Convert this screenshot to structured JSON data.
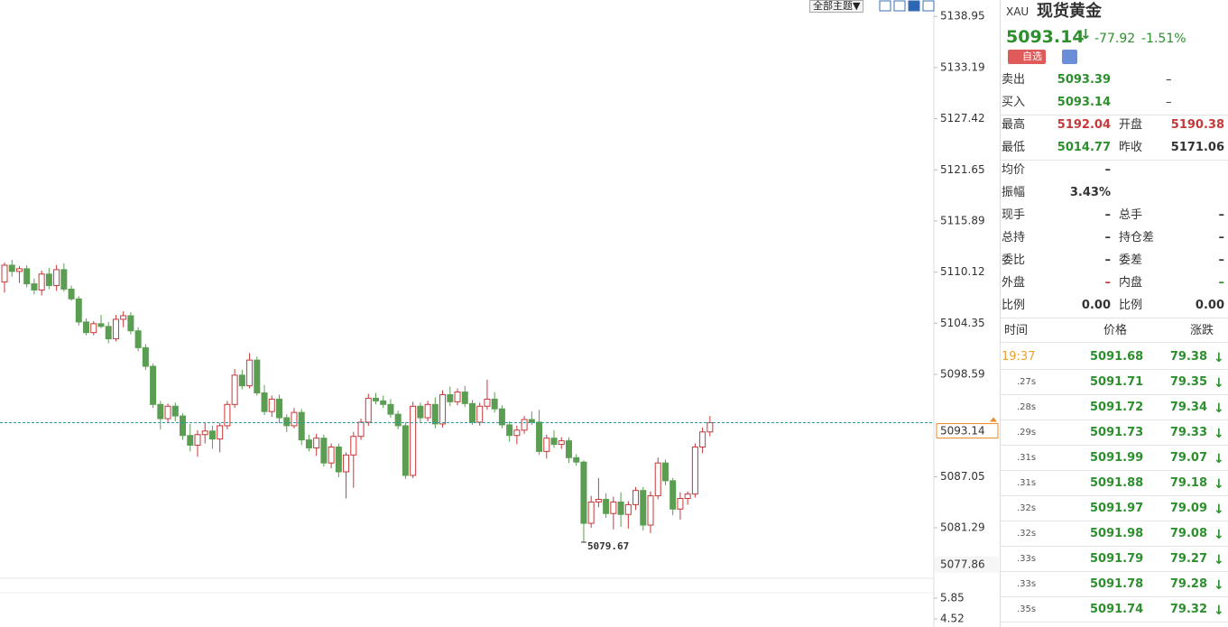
{
  "toolbar": {
    "theme_button": "全部主题▼"
  },
  "chart_data": {
    "type": "candlestick",
    "candles": [
      [
        5109.0,
        5111.2,
        5107.8,
        5110.9
      ],
      [
        5110.9,
        5111.5,
        5109.6,
        5110.2
      ],
      [
        5110.2,
        5110.8,
        5108.9,
        5110.5
      ],
      [
        5110.5,
        5110.9,
        5108.4,
        5108.8
      ],
      [
        5108.8,
        5109.4,
        5107.6,
        5108.1
      ],
      [
        5108.1,
        5110.3,
        5107.5,
        5109.9
      ],
      [
        5109.9,
        5110.6,
        5108.2,
        5108.6
      ],
      [
        5108.6,
        5110.9,
        5108.0,
        5110.4
      ],
      [
        5110.4,
        5111.1,
        5107.9,
        5108.2
      ],
      [
        5108.2,
        5108.6,
        5106.9,
        5107.1
      ],
      [
        5107.1,
        5107.4,
        5104.1,
        5104.5
      ],
      [
        5104.5,
        5104.9,
        5103.0,
        5103.3
      ],
      [
        5103.3,
        5104.6,
        5103.0,
        5104.3
      ],
      [
        5104.3,
        5105.3,
        5103.8,
        5104.0
      ],
      [
        5104.0,
        5104.5,
        5102.1,
        5102.6
      ],
      [
        5102.6,
        5105.3,
        5102.3,
        5104.8
      ],
      [
        5104.8,
        5105.7,
        5103.9,
        5105.2
      ],
      [
        5105.2,
        5105.6,
        5103.1,
        5103.5
      ],
      [
        5103.5,
        5103.9,
        5101.2,
        5101.6
      ],
      [
        5101.6,
        5102.0,
        5099.1,
        5099.5
      ],
      [
        5099.5,
        5099.8,
        5094.8,
        5095.2
      ],
      [
        5095.2,
        5095.6,
        5092.4,
        5093.6
      ],
      [
        5093.6,
        5095.3,
        5093.2,
        5095.0
      ],
      [
        5095.0,
        5095.4,
        5093.3,
        5093.9
      ],
      [
        5093.9,
        5094.2,
        5091.2,
        5091.7
      ],
      [
        5091.7,
        5093.0,
        5089.9,
        5090.6
      ],
      [
        5090.6,
        5092.3,
        5089.3,
        5091.8
      ],
      [
        5091.8,
        5093.2,
        5090.8,
        5092.2
      ],
      [
        5092.2,
        5092.8,
        5090.2,
        5091.3
      ],
      [
        5091.3,
        5093.1,
        5089.8,
        5092.8
      ],
      [
        5092.8,
        5095.6,
        5092.4,
        5095.2
      ],
      [
        5095.2,
        5099.2,
        5094.8,
        5098.5
      ],
      [
        5098.5,
        5099.1,
        5096.9,
        5097.3
      ],
      [
        5097.3,
        5101.0,
        5097.0,
        5100.2
      ],
      [
        5100.2,
        5100.6,
        5096.2,
        5096.5
      ],
      [
        5096.5,
        5097.4,
        5094.0,
        5094.4
      ],
      [
        5094.4,
        5096.2,
        5093.8,
        5095.8
      ],
      [
        5095.8,
        5096.3,
        5093.1,
        5093.7
      ],
      [
        5093.7,
        5094.1,
        5092.1,
        5092.8
      ],
      [
        5092.8,
        5094.8,
        5092.5,
        5094.3
      ],
      [
        5094.3,
        5094.7,
        5090.6,
        5091.2
      ],
      [
        5091.2,
        5091.8,
        5089.9,
        5090.3
      ],
      [
        5090.3,
        5091.9,
        5089.4,
        5091.4
      ],
      [
        5091.4,
        5091.8,
        5088.2,
        5088.6
      ],
      [
        5088.6,
        5090.8,
        5088.0,
        5090.4
      ],
      [
        5090.4,
        5090.8,
        5087.0,
        5087.6
      ],
      [
        5087.6,
        5089.8,
        5084.6,
        5089.5
      ],
      [
        5089.5,
        5092.1,
        5085.8,
        5091.6
      ],
      [
        5091.6,
        5093.6,
        5091.2,
        5093.2
      ],
      [
        5093.2,
        5096.4,
        5092.8,
        5095.9
      ],
      [
        5095.9,
        5096.5,
        5095.2,
        5095.6
      ],
      [
        5095.6,
        5096.2,
        5094.8,
        5095.2
      ],
      [
        5095.2,
        5095.8,
        5093.7,
        5094.1
      ],
      [
        5094.1,
        5094.5,
        5092.4,
        5092.8
      ],
      [
        5092.8,
        5093.2,
        5086.8,
        5087.2
      ],
      [
        5087.2,
        5095.5,
        5086.9,
        5095.0
      ],
      [
        5095.0,
        5095.4,
        5093.2,
        5093.7
      ],
      [
        5093.7,
        5095.6,
        5093.3,
        5095.2
      ],
      [
        5095.2,
        5096.0,
        5092.5,
        5093.0
      ],
      [
        5093.0,
        5096.8,
        5092.6,
        5096.3
      ],
      [
        5096.3,
        5097.2,
        5095.0,
        5095.5
      ],
      [
        5095.5,
        5097.0,
        5095.1,
        5096.6
      ],
      [
        5096.6,
        5097.3,
        5094.9,
        5095.3
      ],
      [
        5095.3,
        5095.7,
        5092.9,
        5093.2
      ],
      [
        5093.2,
        5095.4,
        5092.8,
        5095.0
      ],
      [
        5095.0,
        5098.0,
        5094.6,
        5095.8
      ],
      [
        5095.8,
        5096.6,
        5094.3,
        5094.7
      ],
      [
        5094.7,
        5095.1,
        5092.5,
        5092.9
      ],
      [
        5092.9,
        5093.3,
        5091.0,
        5091.7
      ],
      [
        5091.7,
        5092.8,
        5090.7,
        5092.3
      ],
      [
        5092.3,
        5093.9,
        5091.9,
        5093.5
      ],
      [
        5093.5,
        5094.4,
        5092.9,
        5093.2
      ],
      [
        5093.2,
        5094.6,
        5089.5,
        5089.9
      ],
      [
        5089.9,
        5091.8,
        5089.1,
        5091.4
      ],
      [
        5091.4,
        5092.3,
        5090.3,
        5090.7
      ],
      [
        5090.7,
        5091.5,
        5090.2,
        5091.1
      ],
      [
        5091.1,
        5091.5,
        5088.6,
        5089.2
      ],
      [
        5089.2,
        5089.6,
        5088.3,
        5088.7
      ],
      [
        5088.7,
        5088.9,
        5079.67,
        5081.8
      ],
      [
        5081.8,
        5084.9,
        5081.3,
        5084.2
      ],
      [
        5084.2,
        5086.9,
        5083.6,
        5084.5
      ],
      [
        5084.5,
        5085.2,
        5082.4,
        5082.9
      ],
      [
        5082.9,
        5084.8,
        5081.1,
        5084.2
      ],
      [
        5084.2,
        5085.3,
        5081.4,
        5082.8
      ],
      [
        5082.8,
        5084.3,
        5081.2,
        5083.9
      ],
      [
        5083.9,
        5085.9,
        5083.3,
        5085.5
      ],
      [
        5085.5,
        5085.9,
        5081.0,
        5081.6
      ],
      [
        5081.6,
        5085.4,
        5080.7,
        5084.9
      ],
      [
        5084.9,
        5089.2,
        5084.5,
        5088.6
      ],
      [
        5088.6,
        5089.0,
        5086.1,
        5086.6
      ],
      [
        5086.6,
        5086.9,
        5082.7,
        5083.4
      ],
      [
        5083.4,
        5085.3,
        5082.2,
        5084.6
      ],
      [
        5084.6,
        5085.4,
        5083.9,
        5085.1
      ],
      [
        5085.1,
        5090.8,
        5084.7,
        5090.4
      ],
      [
        5090.4,
        5092.6,
        5089.7,
        5092.1
      ],
      [
        5092.1,
        5093.9,
        5091.6,
        5093.14
      ]
    ],
    "up_color": "#c8373a",
    "down_color": "#5b9e53",
    "ylim": [
      5075.6,
      5140.8
    ],
    "yticks": [
      5138.95,
      5133.19,
      5127.42,
      5121.65,
      5115.89,
      5110.12,
      5104.35,
      5098.59,
      5087.05,
      5081.29
    ],
    "low_label_candle": 78,
    "marker_price": 5077.86,
    "grid": false,
    "sub_panel": {
      "ylim": [
        4.0,
        6.89
      ],
      "yticks": [
        5.85,
        4.52
      ]
    }
  },
  "quote": {
    "symbol": "XAU",
    "name": "现货黄金",
    "price": "5093.14",
    "change": "-77.92",
    "change_pct": "-1.51%",
    "watch_button": "自选",
    "rows": [
      {
        "left": {
          "label": "卖出",
          "value": "5093.39",
          "tone": "green"
        },
        "right": {
          "value": "–"
        }
      },
      {
        "left": {
          "label": "买入",
          "value": "5093.14",
          "tone": "green"
        },
        "right": {
          "value": "–"
        }
      },
      {
        "left": {
          "label": "最高",
          "value": "5192.04",
          "tone": "red"
        },
        "right": {
          "label": "开盘",
          "value": "5190.38",
          "tone": "red"
        }
      },
      {
        "left": {
          "label": "最低",
          "value": "5014.77",
          "tone": "green"
        },
        "right": {
          "label": "昨收",
          "value": "5171.06"
        }
      },
      {
        "left": {
          "label": "均价",
          "value": "–"
        }
      },
      {
        "left": {
          "label": "振幅",
          "value": "3.43%"
        }
      },
      {
        "left": {
          "label": "现手",
          "value": "–"
        },
        "right": {
          "label": "总手",
          "value": "–"
        }
      },
      {
        "left": {
          "label": "总持",
          "value": "–"
        },
        "right": {
          "label": "持仓差",
          "value": "–"
        }
      },
      {
        "left": {
          "label": "委比",
          "value": "–"
        },
        "right": {
          "label": "委差",
          "value": "–"
        }
      },
      {
        "left": {
          "label": "外盘",
          "value": "–",
          "tone": "red"
        },
        "right": {
          "label": "内盘",
          "value": "–",
          "tone": "green"
        }
      },
      {
        "left": {
          "label": "比例",
          "value": "0.00"
        },
        "right": {
          "label": "比例",
          "value": "0.00"
        }
      }
    ]
  },
  "trades": {
    "header": [
      "时间",
      "价格",
      "涨跌"
    ],
    "rows": [
      [
        "19:37",
        "5091.68",
        "79.38"
      ],
      [
        ".27s",
        "5091.71",
        "79.35"
      ],
      [
        ".28s",
        "5091.72",
        "79.34"
      ],
      [
        ".29s",
        "5091.73",
        "79.33"
      ],
      [
        ".31s",
        "5091.99",
        "79.07"
      ],
      [
        ".31s",
        "5091.88",
        "79.18"
      ],
      [
        ".32s",
        "5091.97",
        "79.09"
      ],
      [
        ".32s",
        "5091.98",
        "79.08"
      ],
      [
        ".33s",
        "5091.79",
        "79.27"
      ],
      [
        ".33s",
        "5091.78",
        "79.28"
      ],
      [
        ".35s",
        "5091.74",
        "79.32"
      ]
    ]
  }
}
